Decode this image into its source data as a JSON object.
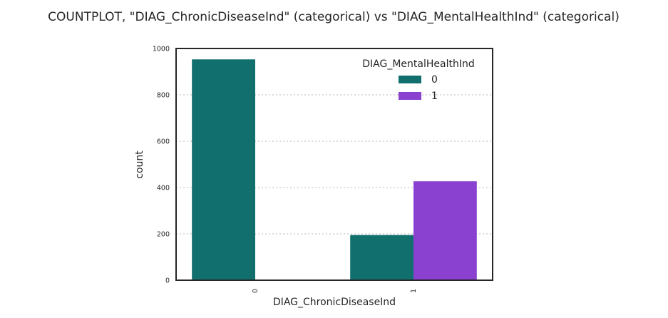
{
  "chart_data": {
    "type": "bar",
    "title": "COUNTPLOT, \"DIAG_ChronicDiseaseInd\" (categorical) vs \"DIAG_MentalHealthInd\" (categorical)",
    "xlabel": "DIAG_ChronicDiseaseInd",
    "ylabel": "count",
    "categories": [
      "0",
      "1"
    ],
    "yticks": [
      "0",
      "200",
      "400",
      "600",
      "800",
      "1000"
    ],
    "ylim": [
      0,
      1000
    ],
    "grid": true,
    "legend": {
      "title": "DIAG_MentalHealthInd",
      "placement": "top-right"
    },
    "series": [
      {
        "name": "0",
        "color": "#11706E",
        "values": [
          953,
          195
        ]
      },
      {
        "name": "1",
        "color": "#8A41D0",
        "values": [
          0,
          427
        ]
      }
    ]
  }
}
